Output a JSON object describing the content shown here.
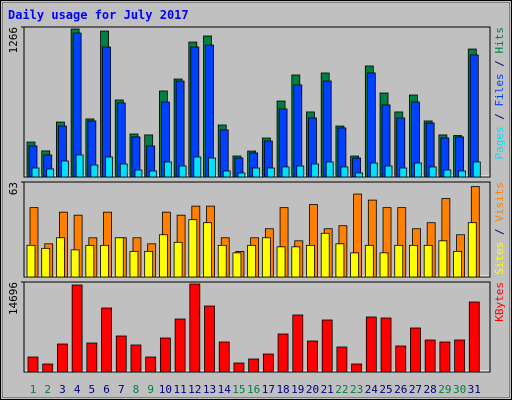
{
  "chart_data": [
    {
      "type": "bar",
      "title": "Daily usage for July 2017",
      "ylim": [
        0,
        1266
      ],
      "yticks": [
        1266
      ],
      "legend_separator": " / ",
      "series": [
        {
          "name": "Hits",
          "color": "#008040",
          "values": [
            295,
            220,
            464,
            1249,
            490,
            1232,
            650,
            363,
            355,
            726,
            827,
            1139,
            1190,
            439,
            177,
            219,
            329,
            641,
            861,
            549,
            878,
            430,
            177,
            937,
            709,
            549,
            692,
            473,
            355,
            350,
            1080
          ]
        },
        {
          "name": "Files",
          "color": "#0040ff",
          "values": [
            262,
            186,
            430,
            1215,
            473,
            1097,
            625,
            338,
            262,
            633,
            810,
            1097,
            1114,
            397,
            160,
            203,
            304,
            574,
            777,
            498,
            810,
            414,
            160,
            878,
            608,
            498,
            633,
            456,
            329,
            338,
            1030
          ]
        },
        {
          "name": "Pages",
          "color": "#00e0ff",
          "values": [
            76,
            68,
            135,
            186,
            101,
            169,
            110,
            59,
            51,
            127,
            93,
            169,
            160,
            51,
            34,
            76,
            76,
            85,
            93,
            110,
            127,
            85,
            34,
            118,
            93,
            76,
            118,
            85,
            59,
            51,
            127
          ]
        }
      ]
    },
    {
      "type": "bar",
      "ylim": [
        0,
        63
      ],
      "yticks": [
        63
      ],
      "legend_separator": " / ",
      "series": [
        {
          "name": "Visits",
          "color": "#ff8000",
          "values": [
            46,
            22,
            43,
            41,
            26,
            43,
            26,
            26,
            22,
            43,
            41,
            47,
            47,
            26,
            17,
            26,
            32,
            46,
            24,
            48,
            32,
            34,
            55,
            51,
            46,
            46,
            32,
            36,
            52,
            28,
            60
          ]
        },
        {
          "name": "Sites",
          "color": "#ffff00",
          "values": [
            21,
            19,
            26,
            18,
            21,
            21,
            26,
            17,
            17,
            28,
            23,
            38,
            36,
            21,
            16,
            21,
            26,
            20,
            20,
            21,
            29,
            22,
            16,
            21,
            16,
            21,
            21,
            21,
            24,
            17,
            36
          ]
        }
      ]
    },
    {
      "type": "bar",
      "ylim": [
        0,
        14696
      ],
      "yticks": [
        14696
      ],
      "categories": [
        "1",
        "2",
        "3",
        "4",
        "5",
        "6",
        "7",
        "8",
        "9",
        "10",
        "11",
        "12",
        "13",
        "14",
        "15",
        "16",
        "17",
        "18",
        "19",
        "20",
        "21",
        "22",
        "23",
        "24",
        "25",
        "26",
        "27",
        "28",
        "29",
        "30",
        "31"
      ],
      "category_colors": [
        "#008040",
        "#008040",
        "#000080",
        "#000080",
        "#000080",
        "#000080",
        "#000080",
        "#008040",
        "#008040",
        "#000080",
        "#000080",
        "#000080",
        "#000080",
        "#000080",
        "#008040",
        "#008040",
        "#000080",
        "#000080",
        "#000080",
        "#000080",
        "#000080",
        "#008040",
        "#008040",
        "#000080",
        "#000080",
        "#000080",
        "#000080",
        "#000080",
        "#008040",
        "#008040",
        "#000080"
      ],
      "series": [
        {
          "name": "KBytes",
          "color": "#ff0000",
          "values": [
            2449,
            1306,
            4572,
            14206,
            4735,
            10450,
            5878,
            4409,
            2449,
            5552,
            8654,
            14369,
            10777,
            4899,
            1470,
            2123,
            2939,
            6205,
            9308,
            5062,
            8491,
            4082,
            1306,
            8981,
            8818,
            4246,
            7185,
            5225,
            4899,
            5225,
            11430
          ]
        }
      ]
    }
  ]
}
